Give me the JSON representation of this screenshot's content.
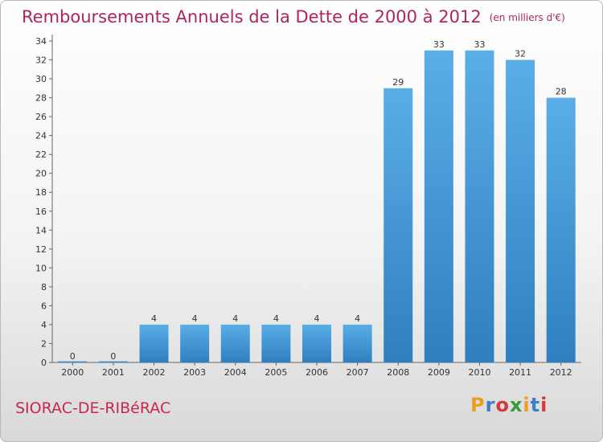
{
  "title": "Remboursements Annuels de la Dette de 2000 à 2012",
  "unit": "(en milliers d'€)",
  "commune": "SIORAC-DE-RIBéRAC",
  "logo": {
    "letters": [
      "P",
      "r",
      "o",
      "x",
      "i",
      "t",
      "i"
    ],
    "colors": [
      "#e8a020",
      "#3a7fc8",
      "#d33a3a",
      "#3a9a3a",
      "#e8a020",
      "#3a7fc8",
      "#d33a3a"
    ]
  },
  "colors": {
    "title": "#b0245e",
    "bar_top": "#5aaee6",
    "bar_bottom": "#2f7fc0",
    "commune": "#c8284e"
  },
  "chart_data": {
    "type": "bar",
    "title": "Remboursements Annuels de la Dette de 2000 à 2012",
    "categories": [
      "2000",
      "2001",
      "2002",
      "2003",
      "2004",
      "2005",
      "2006",
      "2007",
      "2008",
      "2009",
      "2010",
      "2011",
      "2012"
    ],
    "values": [
      0,
      0,
      4,
      4,
      4,
      4,
      4,
      4,
      29,
      33,
      33,
      32,
      28
    ],
    "ylim": [
      0,
      34
    ],
    "yticks": [
      0,
      2,
      4,
      6,
      8,
      10,
      12,
      14,
      16,
      18,
      20,
      22,
      24,
      26,
      28,
      30,
      32,
      34
    ],
    "grid": false,
    "xlabel": "",
    "ylabel": ""
  }
}
